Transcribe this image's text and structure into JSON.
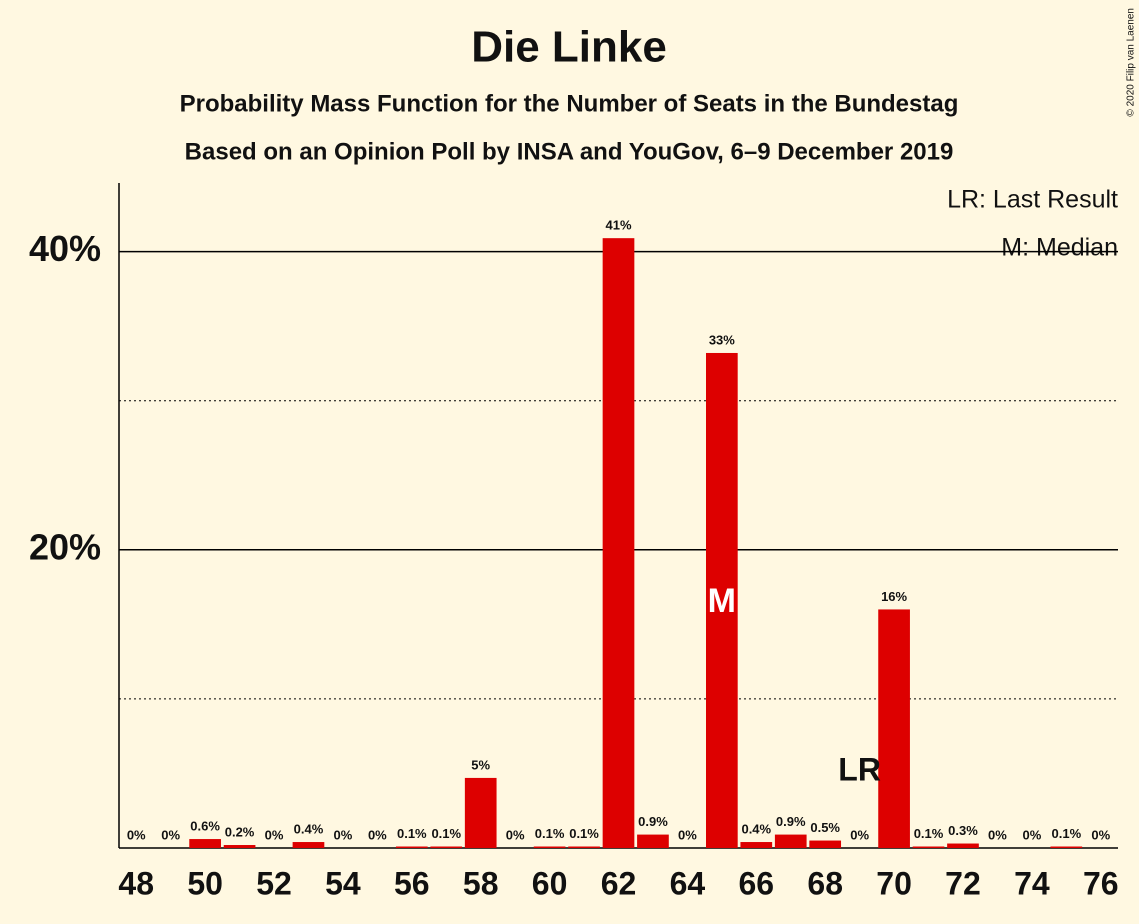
{
  "chart_data": {
    "type": "bar",
    "title": "Die Linke",
    "subtitle": "Probability Mass Function for the Number of Seats in the Bundestag",
    "subtitle2": "Based on an Opinion Poll by INSA and YouGov, 6–9 December 2019",
    "copyright": "© 2020 Filip van Laenen",
    "legend_lr": "LR: Last Result",
    "legend_m": "M: Median",
    "median_label": "M",
    "median": 65,
    "last_result_label": "LR",
    "last_result": 69,
    "color": "#dd0000",
    "x": [
      48,
      49,
      50,
      51,
      52,
      53,
      54,
      55,
      56,
      57,
      58,
      59,
      60,
      61,
      62,
      63,
      64,
      65,
      66,
      67,
      68,
      69,
      70,
      71,
      72,
      73,
      74,
      75,
      76
    ],
    "values": [
      0,
      0,
      0.6,
      0.2,
      0,
      0.4,
      0,
      0,
      0.1,
      0.1,
      4.7,
      0,
      0.1,
      0.1,
      40.9,
      0.9,
      0,
      33.2,
      0.4,
      0.9,
      0.5,
      0,
      16.0,
      0.1,
      0.3,
      0,
      0,
      0.1,
      0
    ],
    "value_labels": [
      "0%",
      "0%",
      "0.6%",
      "0.2%",
      "0%",
      "0.4%",
      "0%",
      "0%",
      "0.1%",
      "0.1%",
      "5%",
      "0%",
      "0.1%",
      "0.1%",
      "41%",
      "0.9%",
      "0%",
      "33%",
      "0.4%",
      "0.9%",
      "0.5%",
      "0%",
      "16%",
      "0.1%",
      "0.3%",
      "0%",
      "0%",
      "0.1%",
      "0%"
    ],
    "xlim": [
      47.5,
      76.5
    ],
    "xticks": [
      48,
      50,
      52,
      54,
      56,
      58,
      60,
      62,
      64,
      66,
      68,
      70,
      72,
      74,
      76
    ],
    "ylim": [
      0,
      44.6
    ],
    "yticks": [
      {
        "value": 20,
        "label": "20%"
      },
      {
        "value": 40,
        "label": "40%"
      }
    ],
    "yminor": [
      10,
      30
    ],
    "grid": true
  }
}
